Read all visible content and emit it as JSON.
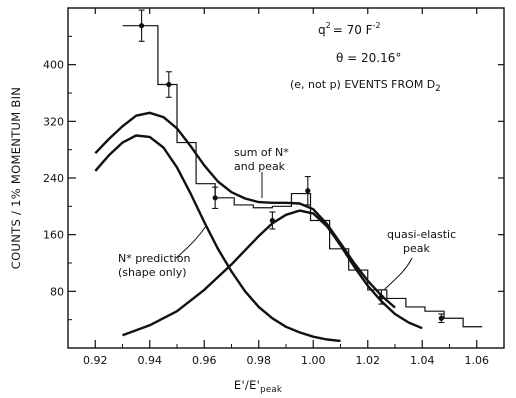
{
  "chart_data": {
    "type": "line",
    "xlabel": "E'/E'",
    "xlabel_sub": "peak",
    "ylabel": "COUNTS / 1% MOMENTUM BIN",
    "xlim": [
      0.91,
      1.07
    ],
    "ylim": [
      0,
      480
    ],
    "x_ticks": [
      0.92,
      0.94,
      0.96,
      0.98,
      1.0,
      1.02,
      1.04,
      1.06
    ],
    "x_tick_labels": [
      "0.92",
      "0.94",
      "0.96",
      "0.98",
      "1.00",
      "1.02",
      "1.04",
      "1.06"
    ],
    "y_ticks": [
      80,
      160,
      240,
      320,
      400
    ],
    "y_tick_labels": [
      "80",
      "160",
      "240",
      "320",
      "400"
    ],
    "legend": {
      "q2_prefix": "q",
      "q2_exp": "2",
      "q2_value": "= 70 F",
      "q2_unit_exp": "-2",
      "theta": "θ = 20.16°",
      "events": "(e, not p) EVENTS FROM D",
      "events_sub": "2"
    },
    "annotations": {
      "sum_line1": "sum of N*",
      "sum_line2": "and peak",
      "quasi_line1": "quasi-elastic",
      "quasi_line2": "peak",
      "nstar_line1": "N* prediction",
      "nstar_line2": "(shape only)"
    },
    "series": [
      {
        "type": "step",
        "edges": [
          0.93,
          0.943,
          0.95,
          0.957,
          0.964,
          0.971,
          0.978,
          0.985,
          0.992,
          0.999,
          1.006,
          1.013,
          1.02,
          1.027,
          1.034,
          1.041,
          1.048,
          1.055,
          1.062
        ],
        "values": [
          455,
          372,
          290,
          232,
          212,
          202,
          198,
          200,
          218,
          180,
          140,
          110,
          82,
          70,
          58,
          52,
          42,
          30
        ]
      },
      {
        "type": "points",
        "x": [
          0.937,
          0.947,
          0.964,
          0.985,
          0.998,
          1.025,
          1.047
        ],
        "y": [
          455,
          372,
          212,
          180,
          222,
          72,
          42
        ],
        "yerr": [
          22,
          18,
          15,
          12,
          20,
          10,
          6
        ]
      },
      {
        "type": "curve",
        "x": [
          0.92,
          0.925,
          0.93,
          0.935,
          0.94,
          0.945,
          0.95,
          0.955,
          0.96,
          0.965,
          0.97,
          0.975,
          0.98,
          0.985,
          0.99,
          0.995,
          1.0,
          1.005,
          1.01,
          1.015,
          1.02,
          1.025,
          1.03
        ],
        "y": [
          275,
          295,
          313,
          328,
          332,
          326,
          310,
          285,
          258,
          235,
          220,
          211,
          206,
          205,
          205,
          204,
          196,
          175,
          148,
          120,
          95,
          74,
          57
        ]
      },
      {
        "type": "curve",
        "x": [
          0.92,
          0.925,
          0.93,
          0.935,
          0.94,
          0.945,
          0.95,
          0.955,
          0.96,
          0.965,
          0.97,
          0.975,
          0.98,
          0.985,
          0.99,
          0.995,
          1.0,
          1.005,
          1.01
        ],
        "y": [
          250,
          272,
          290,
          300,
          298,
          283,
          255,
          218,
          178,
          140,
          108,
          80,
          58,
          42,
          30,
          22,
          16,
          12,
          10
        ]
      },
      {
        "type": "curve",
        "x": [
          0.93,
          0.94,
          0.95,
          0.96,
          0.97,
          0.98,
          0.985,
          0.99,
          0.995,
          1.0,
          1.005,
          1.01,
          1.015,
          1.02,
          1.025,
          1.03,
          1.035,
          1.04
        ],
        "y": [
          18,
          32,
          52,
          82,
          118,
          158,
          176,
          188,
          194,
          190,
          172,
          145,
          115,
          88,
          66,
          48,
          36,
          28
        ]
      }
    ]
  }
}
